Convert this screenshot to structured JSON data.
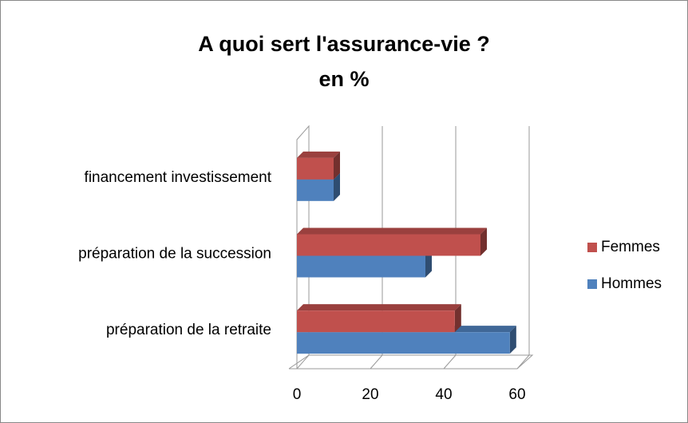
{
  "chart_data": {
    "type": "bar",
    "orientation": "horizontal",
    "title": "A quoi sert l'assurance-vie ?",
    "subtitle": "en %",
    "categories": [
      "préparation de la retraite",
      "préparation de la succession",
      "financement investissement"
    ],
    "series": [
      {
        "name": "Hommes",
        "color": "#4f81bd",
        "values": [
          58,
          35,
          10
        ]
      },
      {
        "name": "Femmes",
        "color": "#c0504d",
        "values": [
          43,
          50,
          10
        ]
      }
    ],
    "xlim": [
      0,
      60
    ],
    "xticks": [
      0,
      20,
      40,
      60
    ],
    "grid": true,
    "legend": "right"
  }
}
